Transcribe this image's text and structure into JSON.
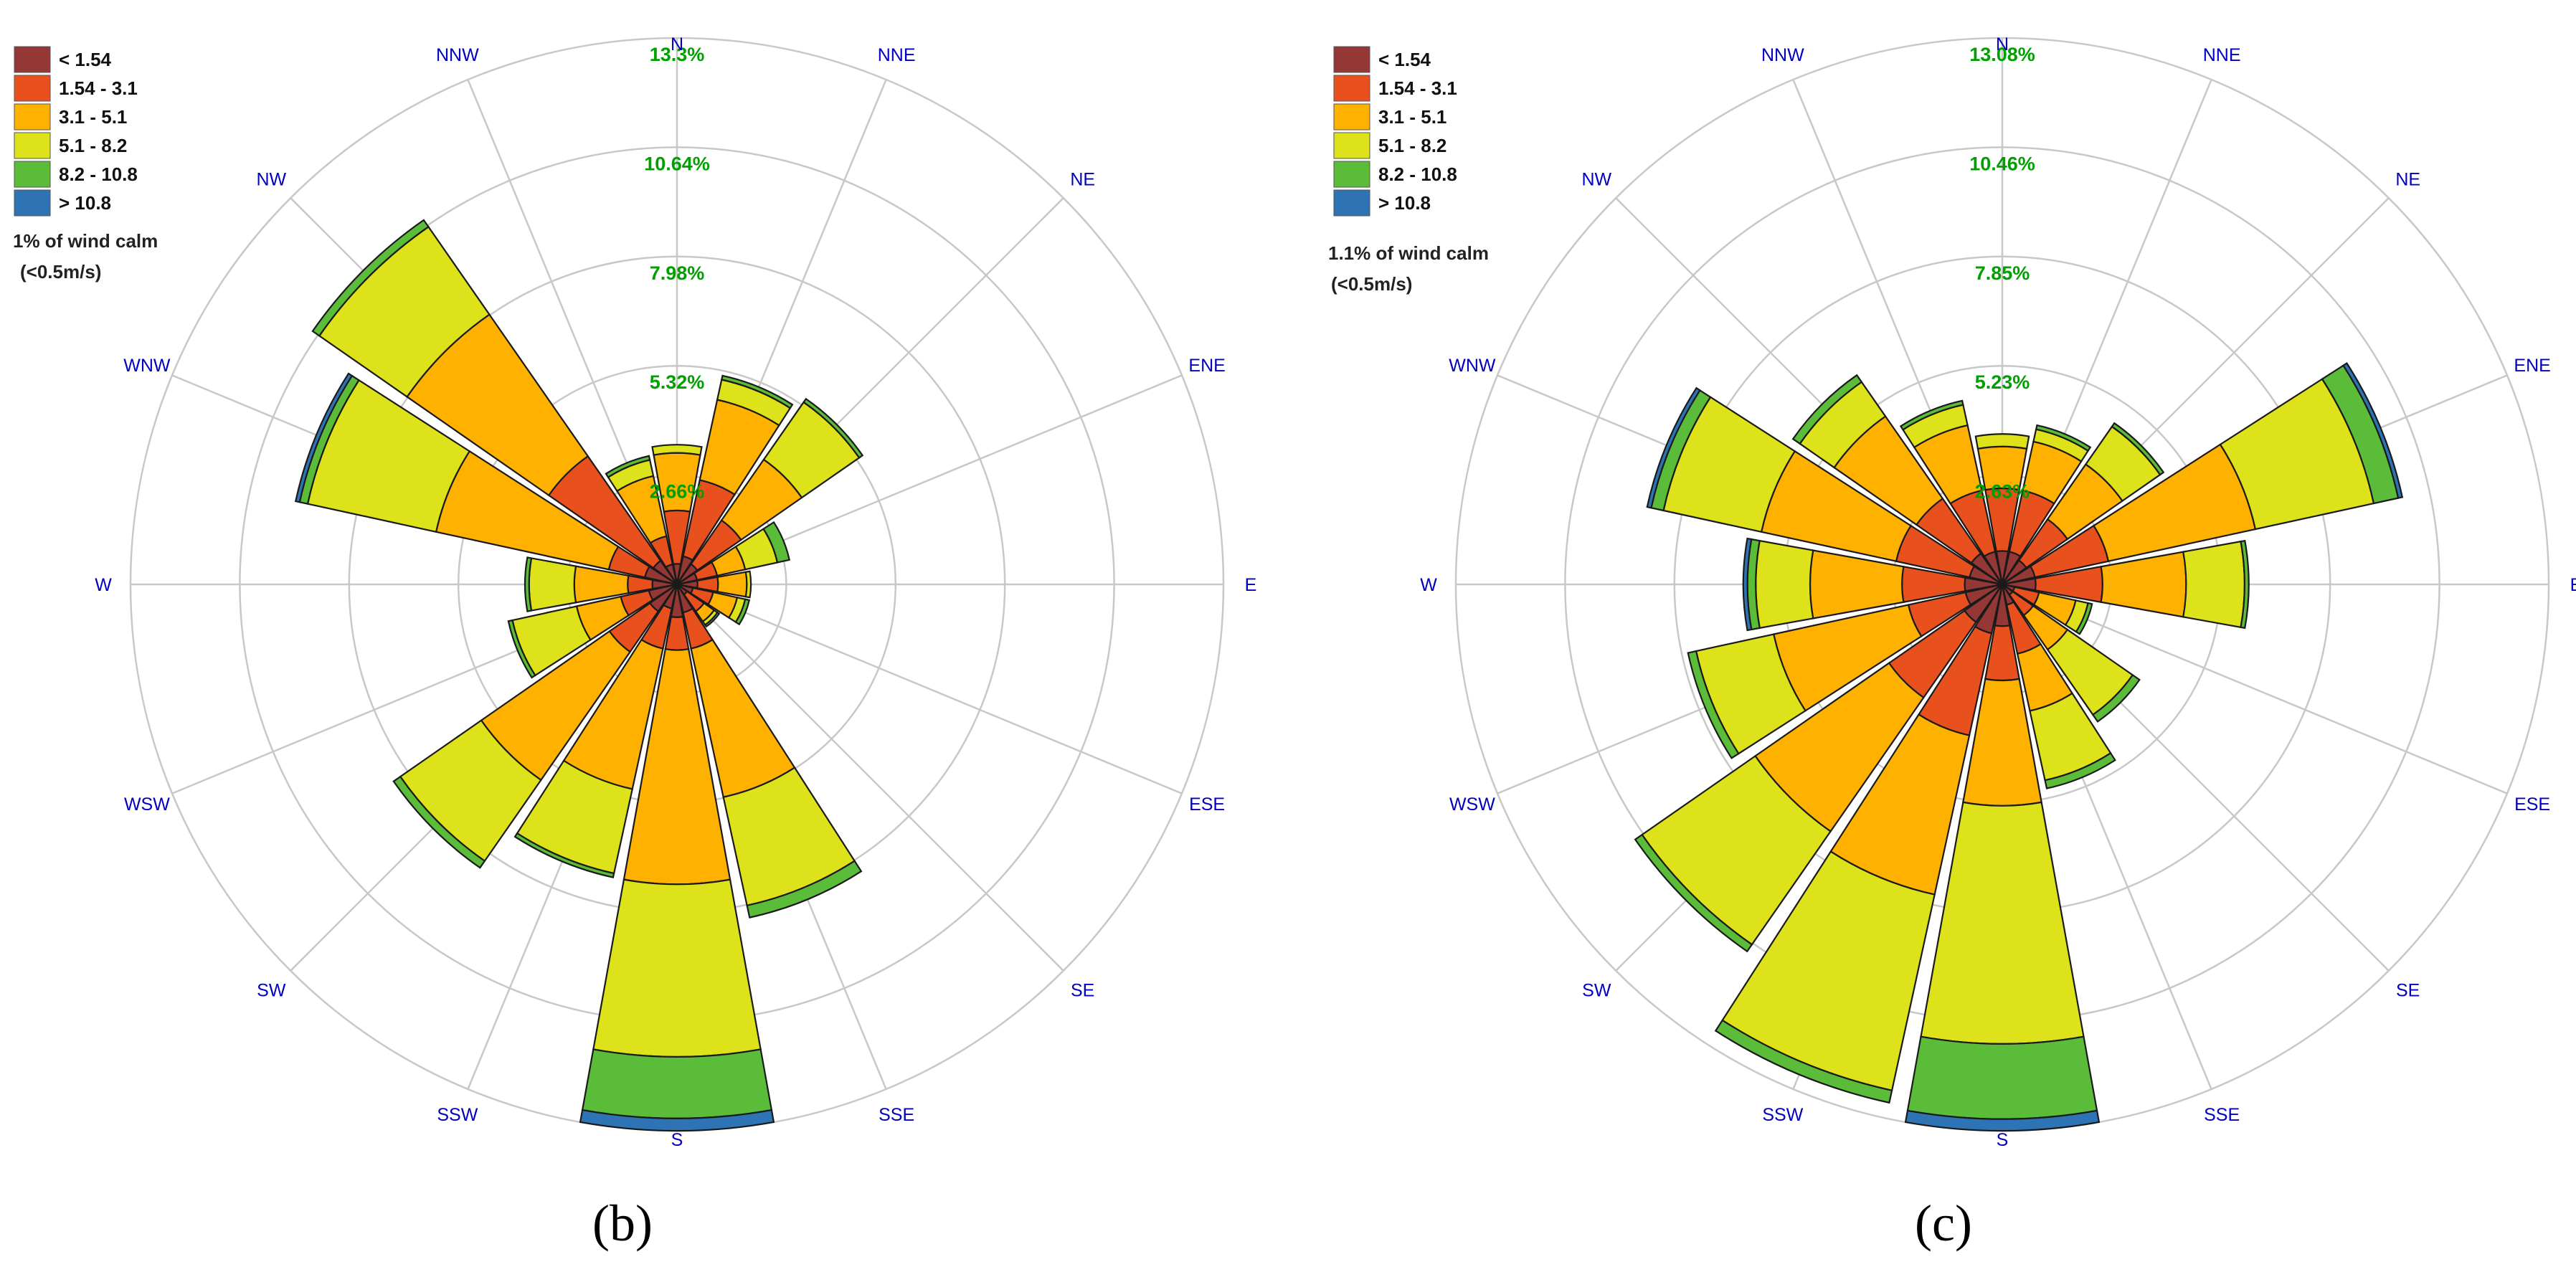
{
  "panels": [
    {
      "caption": "(b)",
      "calm_line1": "1% of wind calm",
      "calm_line2": "(<0.5m/s)",
      "ring_labels": [
        "2.66%",
        "5.32%",
        "7.98%",
        "10.64%",
        "13.3%"
      ]
    },
    {
      "caption": "(c)",
      "calm_line1": "1.1% of wind calm",
      "calm_line2": "(<0.5m/s)",
      "ring_labels": [
        "2.63%",
        "5.23%",
        "7.85%",
        "10.46%",
        "13.08%"
      ]
    }
  ],
  "legend": {
    "items": [
      {
        "label": "< 1.54",
        "color": "#953735"
      },
      {
        "label": "1.54 - 3.1",
        "color": "#E8511E"
      },
      {
        "label": "3.1 - 5.1",
        "color": "#FFB100"
      },
      {
        "label": "5.1 - 8.2",
        "color": "#DDE21A"
      },
      {
        "label": "8.2 - 10.8",
        "color": "#5BBC3A"
      },
      {
        "label": "> 10.8",
        "color": "#2E74B5"
      }
    ]
  },
  "directions": [
    "N",
    "NNE",
    "NE",
    "ENE",
    "E",
    "ESE",
    "SE",
    "SSE",
    "S",
    "SSW",
    "SW",
    "WSW",
    "W",
    "WNW",
    "NW",
    "NNW"
  ],
  "colors": {
    "ring_label": "#00A000",
    "direction_label": "#0000C0",
    "grid": "#C8C8C8"
  },
  "chart_data": [
    {
      "type": "wind_rose",
      "title": "(b)",
      "unit": "%",
      "calm_percent": 1,
      "ring_values": [
        2.66,
        5.32,
        7.98,
        10.64,
        13.3
      ],
      "rlim": [
        0,
        13.3
      ],
      "speed_classes": [
        "< 1.54",
        "1.54 - 3.1",
        "3.1 - 5.1",
        "5.1 - 8.2",
        "8.2 - 10.8",
        "> 10.8"
      ],
      "directions": [
        "N",
        "NNE",
        "NE",
        "ENE",
        "E",
        "ESE",
        "SE",
        "SSE",
        "S",
        "SSW",
        "SW",
        "WSW",
        "W",
        "WNW",
        "NW",
        "NNW"
      ],
      "cumulative": [
        [
          0.5,
          1.8,
          3.2,
          3.4,
          3.4,
          3.4
        ],
        [
          0.7,
          2.6,
          4.6,
          5.1,
          5.2,
          5.2
        ],
        [
          0.6,
          1.9,
          3.7,
          5.4,
          5.5,
          5.5
        ],
        [
          0.5,
          1.0,
          1.7,
          2.5,
          2.8,
          2.8
        ],
        [
          0.5,
          1.0,
          1.7,
          1.8,
          1.8,
          1.8
        ],
        [
          0.4,
          0.9,
          1.5,
          1.7,
          1.8,
          1.8
        ],
        [
          0.3,
          0.8,
          1.1,
          1.2,
          1.25,
          1.25
        ],
        [
          0.7,
          1.6,
          5.3,
          8.0,
          8.3,
          8.3
        ],
        [
          0.8,
          1.6,
          7.3,
          11.5,
          13.0,
          13.3
        ],
        [
          0.6,
          1.6,
          5.1,
          7.2,
          7.3,
          7.3
        ],
        [
          0.8,
          2.0,
          5.8,
          8.2,
          8.4,
          8.4
        ],
        [
          0.7,
          1.4,
          2.5,
          4.1,
          4.2,
          4.2
        ],
        [
          0.6,
          1.2,
          2.5,
          3.6,
          3.7,
          3.7
        ],
        [
          0.8,
          1.7,
          6.0,
          9.2,
          9.4,
          9.5
        ],
        [
          0.7,
          3.8,
          8.0,
          10.6,
          10.8,
          10.8
        ],
        [
          0.5,
          1.2,
          2.7,
          3.1,
          3.2,
          3.2
        ]
      ]
    },
    {
      "type": "wind_rose",
      "title": "(c)",
      "unit": "%",
      "calm_percent": 1.1,
      "ring_values": [
        2.63,
        5.23,
        7.85,
        10.46,
        13.08
      ],
      "rlim": [
        0,
        13.08
      ],
      "speed_classes": [
        "< 1.54",
        "1.54 - 3.1",
        "3.1 - 5.1",
        "5.1 - 8.2",
        "8.2 - 10.8",
        "> 10.8"
      ],
      "directions": [
        "N",
        "NNE",
        "NE",
        "ENE",
        "E",
        "ESE",
        "SE",
        "SSE",
        "S",
        "SSW",
        "SW",
        "WSW",
        "W",
        "WNW",
        "NW",
        "NNW"
      ],
      "cumulative": [
        [
          0.8,
          2.3,
          3.3,
          3.6,
          3.6,
          3.6
        ],
        [
          0.8,
          2.3,
          3.5,
          3.8,
          3.9,
          3.9
        ],
        [
          0.7,
          1.9,
          3.5,
          4.6,
          4.7,
          4.7
        ],
        [
          0.8,
          2.6,
          6.2,
          9.1,
          9.7,
          9.8
        ],
        [
          0.8,
          2.4,
          4.4,
          5.8,
          5.9,
          5.9
        ],
        [
          0.3,
          0.9,
          1.8,
          2.1,
          2.2,
          2.2
        ],
        [
          0.3,
          0.9,
          1.9,
          3.8,
          4.0,
          4.0
        ],
        [
          0.5,
          1.7,
          3.1,
          4.8,
          5.0,
          5.0
        ],
        [
          1.0,
          2.3,
          5.3,
          11.0,
          12.8,
          13.08
        ],
        [
          1.2,
          3.7,
          7.6,
          12.4,
          12.7,
          12.7
        ],
        [
          1.1,
          3.3,
          7.2,
          10.5,
          10.7,
          10.7
        ],
        [
          0.9,
          2.3,
          5.6,
          7.5,
          7.7,
          7.7
        ],
        [
          0.9,
          2.4,
          4.6,
          5.9,
          6.1,
          6.2
        ],
        [
          0.8,
          2.6,
          5.9,
          8.3,
          8.6,
          8.7
        ],
        [
          0.9,
          2.5,
          4.9,
          5.9,
          6.1,
          6.1
        ],
        [
          0.8,
          2.3,
          3.9,
          4.4,
          4.5,
          4.5
        ]
      ]
    }
  ]
}
